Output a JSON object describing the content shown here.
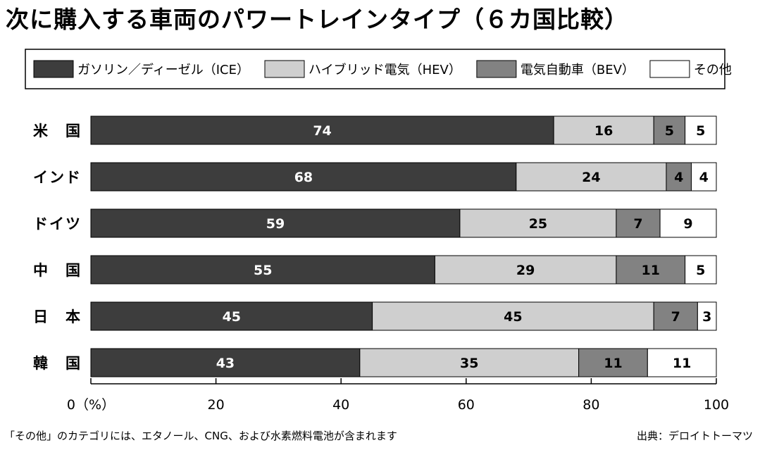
{
  "chart_data": {
    "type": "bar",
    "orientation": "horizontal",
    "stacked": true,
    "title": "次に購入する車両のパワートレインタイプ（６カ国比較）",
    "categories": [
      "米　国",
      "インド",
      "ドイツ",
      "中　国",
      "日　本",
      "韓　国"
    ],
    "series": [
      {
        "name": "ガソリン／ディーゼル（ICE）",
        "color": "#3d3d3d",
        "label_color": "#ffffff",
        "values": [
          74,
          68,
          59,
          55,
          45,
          43
        ]
      },
      {
        "name": "ハイブリッド電気（HEV）",
        "color": "#cfcfcf",
        "label_color": "#000000",
        "values": [
          16,
          24,
          25,
          29,
          45,
          35
        ]
      },
      {
        "name": "電気自動車（BEV）",
        "color": "#828282",
        "label_color": "#000000",
        "values": [
          5,
          4,
          7,
          11,
          7,
          11
        ]
      },
      {
        "name": "その他",
        "color": "#ffffff",
        "label_color": "#000000",
        "values": [
          5,
          4,
          9,
          5,
          3,
          11
        ]
      }
    ],
    "xlim": [
      0,
      100
    ],
    "xticks": [
      0,
      20,
      40,
      60,
      80,
      100
    ],
    "xtick_labels": [
      "0（%）",
      "20",
      "40",
      "60",
      "80",
      "100"
    ],
    "legend_position": "top",
    "grid": false
  },
  "footnote": "「その他」のカテゴリには、エタノール、CNG、および水素燃料電池が含まれます",
  "source": "出典：デロイトトーマツ"
}
